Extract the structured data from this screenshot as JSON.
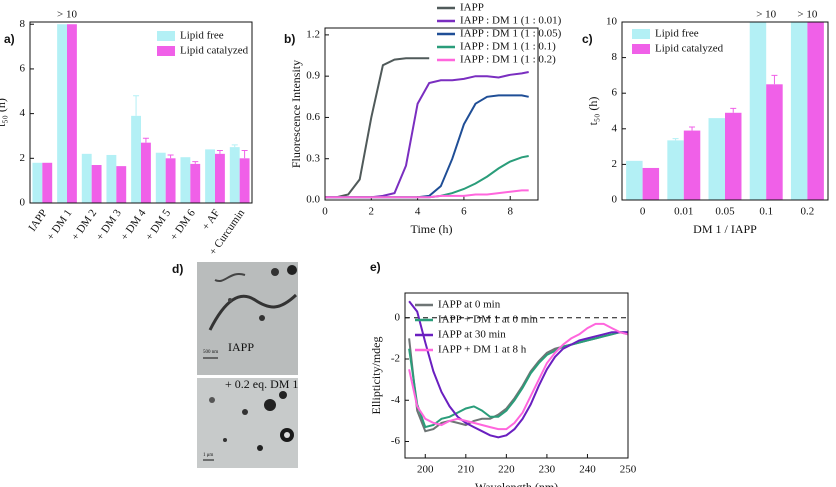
{
  "chart_data": [
    {
      "type": "bar",
      "panel": "a)",
      "ylabel": "t₅₀ (h)",
      "legend": "upper right",
      "categories": [
        "IAPP",
        "+ DM 1",
        "+ DM 2",
        "+ DM 3",
        "+ DM 4",
        "+ DM 5",
        "+ DM 6",
        "+ AF",
        "+ Curcumin"
      ],
      "series": [
        {
          "name": "Lipid free",
          "color": "#b3f0f5",
          "values": [
            1.8,
            8,
            2.2,
            2.15,
            3.9,
            2.25,
            2.05,
            2.4,
            2.5
          ],
          "errors": [
            0,
            0,
            0,
            0,
            0.9,
            0,
            0,
            0,
            0.1
          ]
        },
        {
          "name": "Lipid catalyzed",
          "color": "#f060e8",
          "values": [
            1.8,
            8,
            1.7,
            1.65,
            2.7,
            2.0,
            1.75,
            2.2,
            2.0
          ],
          "errors": [
            0,
            0,
            0,
            0,
            0.2,
            0.15,
            0.1,
            0.15,
            0.35
          ]
        }
      ],
      "annotations": [
        {
          "text": "> 10",
          "category": "+ DM 1"
        }
      ],
      "ylim": [
        0,
        8.1
      ],
      "yticks": [
        0,
        2,
        4,
        6,
        8
      ]
    },
    {
      "type": "line",
      "panel": "b)",
      "xlabel": "Time (h)",
      "ylabel": "Fluorescence Intensity",
      "legend": "above",
      "x": [
        0,
        0.5,
        1,
        1.5,
        2,
        2.5,
        3,
        3.5,
        4,
        4.5,
        5,
        5.5,
        6,
        6.5,
        7,
        7.5,
        8,
        8.5,
        8.8
      ],
      "series": [
        {
          "name": "IAPP",
          "color": "#505a5a",
          "values": [
            0.02,
            0.02,
            0.04,
            0.15,
            0.6,
            0.98,
            1.02,
            1.03,
            1.03,
            1.03,
            null,
            null,
            null,
            null,
            null,
            null,
            null,
            null,
            null
          ]
        },
        {
          "name": "IAPP : DM 1 (1 : 0.01)",
          "color": "#7a2ec0",
          "values": [
            0.02,
            0.02,
            0.02,
            0.02,
            0.02,
            0.03,
            0.05,
            0.25,
            0.7,
            0.85,
            0.87,
            0.87,
            0.88,
            0.9,
            0.9,
            0.89,
            0.91,
            0.92,
            0.93
          ]
        },
        {
          "name": "IAPP : DM 1 (1 : 0.05)",
          "color": "#1f4e96",
          "values": [
            0.02,
            0.02,
            0.02,
            0.02,
            0.02,
            0.02,
            0.02,
            0.02,
            0.02,
            0.03,
            0.1,
            0.3,
            0.55,
            0.7,
            0.75,
            0.76,
            0.76,
            0.76,
            0.75
          ]
        },
        {
          "name": "IAPP : DM 1 (1 : 0.1)",
          "color": "#2a9d7a",
          "values": [
            0.02,
            0.02,
            0.02,
            0.02,
            0.02,
            0.02,
            0.02,
            0.02,
            0.02,
            0.02,
            0.03,
            0.05,
            0.08,
            0.12,
            0.17,
            0.23,
            0.28,
            0.31,
            0.32
          ]
        },
        {
          "name": "IAPP : DM 1 (1 : 0.2)",
          "color": "#ff66dd",
          "values": [
            0.02,
            0.02,
            0.02,
            0.02,
            0.02,
            0.02,
            0.02,
            0.02,
            0.02,
            0.02,
            0.03,
            0.03,
            0.03,
            0.04,
            0.04,
            0.05,
            0.06,
            0.07,
            0.07
          ]
        }
      ],
      "xlim": [
        0,
        9.2
      ],
      "xticks": [
        0,
        2,
        4,
        6,
        8
      ],
      "ylim": [
        0,
        1.25
      ],
      "yticks": [
        {
          "value": 0,
          "label": "0.0"
        },
        0.3,
        0.6,
        0.9,
        1.2
      ]
    },
    {
      "type": "bar",
      "panel": "c)",
      "xlabel": "DM 1 / IAPP",
      "ylabel": "t₅₀ (h)",
      "legend": "upper left",
      "categories": [
        "0",
        "0.01",
        "0.05",
        "0.1",
        "0.2"
      ],
      "series": [
        {
          "name": "Lipid free",
          "color": "#b3f0f5",
          "values": [
            2.2,
            3.35,
            4.6,
            10,
            10
          ],
          "errors": [
            0,
            0.1,
            0,
            0,
            0
          ]
        },
        {
          "name": "Lipid catalyzed",
          "color": "#f060e8",
          "values": [
            1.8,
            3.9,
            4.9,
            6.5,
            10
          ],
          "errors": [
            0,
            0.2,
            0.25,
            0.5,
            0
          ]
        }
      ],
      "annotations": [
        {
          "text": "> 10",
          "category": "0.1"
        },
        {
          "text": "> 10",
          "category": "0.2"
        }
      ],
      "ylim": [
        0,
        10
      ],
      "yticks": [
        0,
        2,
        4,
        6,
        8,
        10
      ]
    },
    {
      "type": "line",
      "panel": "e)",
      "xlabel": "Wavelength (nm)",
      "ylabel": "Ellipticity/mdeg",
      "legend": "upper left",
      "reference_line": 0,
      "x": [
        196,
        198,
        200,
        202,
        204,
        206,
        208,
        210,
        212,
        214,
        216,
        218,
        220,
        222,
        224,
        226,
        228,
        230,
        232,
        234,
        236,
        238,
        240,
        242,
        244,
        246,
        248,
        250
      ],
      "series": [
        {
          "name": "IAPP at 0 min",
          "color": "#6e7575",
          "values": [
            -1.0,
            -4.5,
            -5.5,
            -5.4,
            -5.1,
            -5.0,
            -5.1,
            -5.2,
            -5.0,
            -4.9,
            -4.9,
            -4.7,
            -4.4,
            -3.9,
            -3.3,
            -2.6,
            -2.1,
            -1.7,
            -1.5,
            -1.4,
            -1.3,
            -1.2,
            -1.1,
            -1.0,
            -0.9,
            -0.8,
            -0.7,
            -0.8
          ]
        },
        {
          "name": "IAPP + DM 1 at 0 min",
          "color": "#2a9d7a",
          "values": [
            -1.5,
            -4.2,
            -5.3,
            -5.2,
            -4.9,
            -4.8,
            -4.6,
            -4.4,
            -4.3,
            -4.5,
            -4.8,
            -4.8,
            -4.5,
            -4.0,
            -3.4,
            -2.7,
            -2.2,
            -1.8,
            -1.6,
            -1.4,
            -1.3,
            -1.2,
            -1.1,
            -1.0,
            -0.9,
            -0.8,
            -0.7,
            -0.7
          ]
        },
        {
          "name": "IAPP at 30 min",
          "color": "#6a1fc0",
          "values": [
            0.8,
            0.3,
            -1.2,
            -2.6,
            -3.6,
            -4.3,
            -4.8,
            -5.1,
            -5.3,
            -5.5,
            -5.7,
            -5.8,
            -5.7,
            -5.4,
            -4.9,
            -4.2,
            -3.3,
            -2.5,
            -1.9,
            -1.5,
            -1.3,
            -1.1,
            -1.0,
            -0.9,
            -0.8,
            -0.7,
            -0.7,
            -0.7
          ]
        },
        {
          "name": "IAPP + DM 1 at 8 h",
          "color": "#ff66dd",
          "values": [
            -2.5,
            -4.3,
            -4.9,
            -5.1,
            -5.2,
            -5.0,
            -4.9,
            -5.0,
            -5.1,
            -5.2,
            -5.3,
            -5.4,
            -5.4,
            -5.1,
            -4.6,
            -3.8,
            -3.0,
            -2.2,
            -1.7,
            -1.3,
            -1.0,
            -0.8,
            -0.5,
            -0.3,
            -0.3,
            -0.5,
            -0.7,
            -0.8
          ]
        }
      ],
      "xlim": [
        195,
        250
      ],
      "xticks": [
        200,
        210,
        220,
        230,
        240,
        250
      ],
      "ylim": [
        -6.8,
        1.2
      ],
      "yticks": [
        -6,
        -4,
        -2,
        0
      ]
    }
  ],
  "micrographs": {
    "panel": "d)",
    "images": [
      {
        "label": "IAPP",
        "scale": "500 nm"
      },
      {
        "label": "+ 0.2 eq. DM 1",
        "scale": "1 μm"
      }
    ]
  }
}
